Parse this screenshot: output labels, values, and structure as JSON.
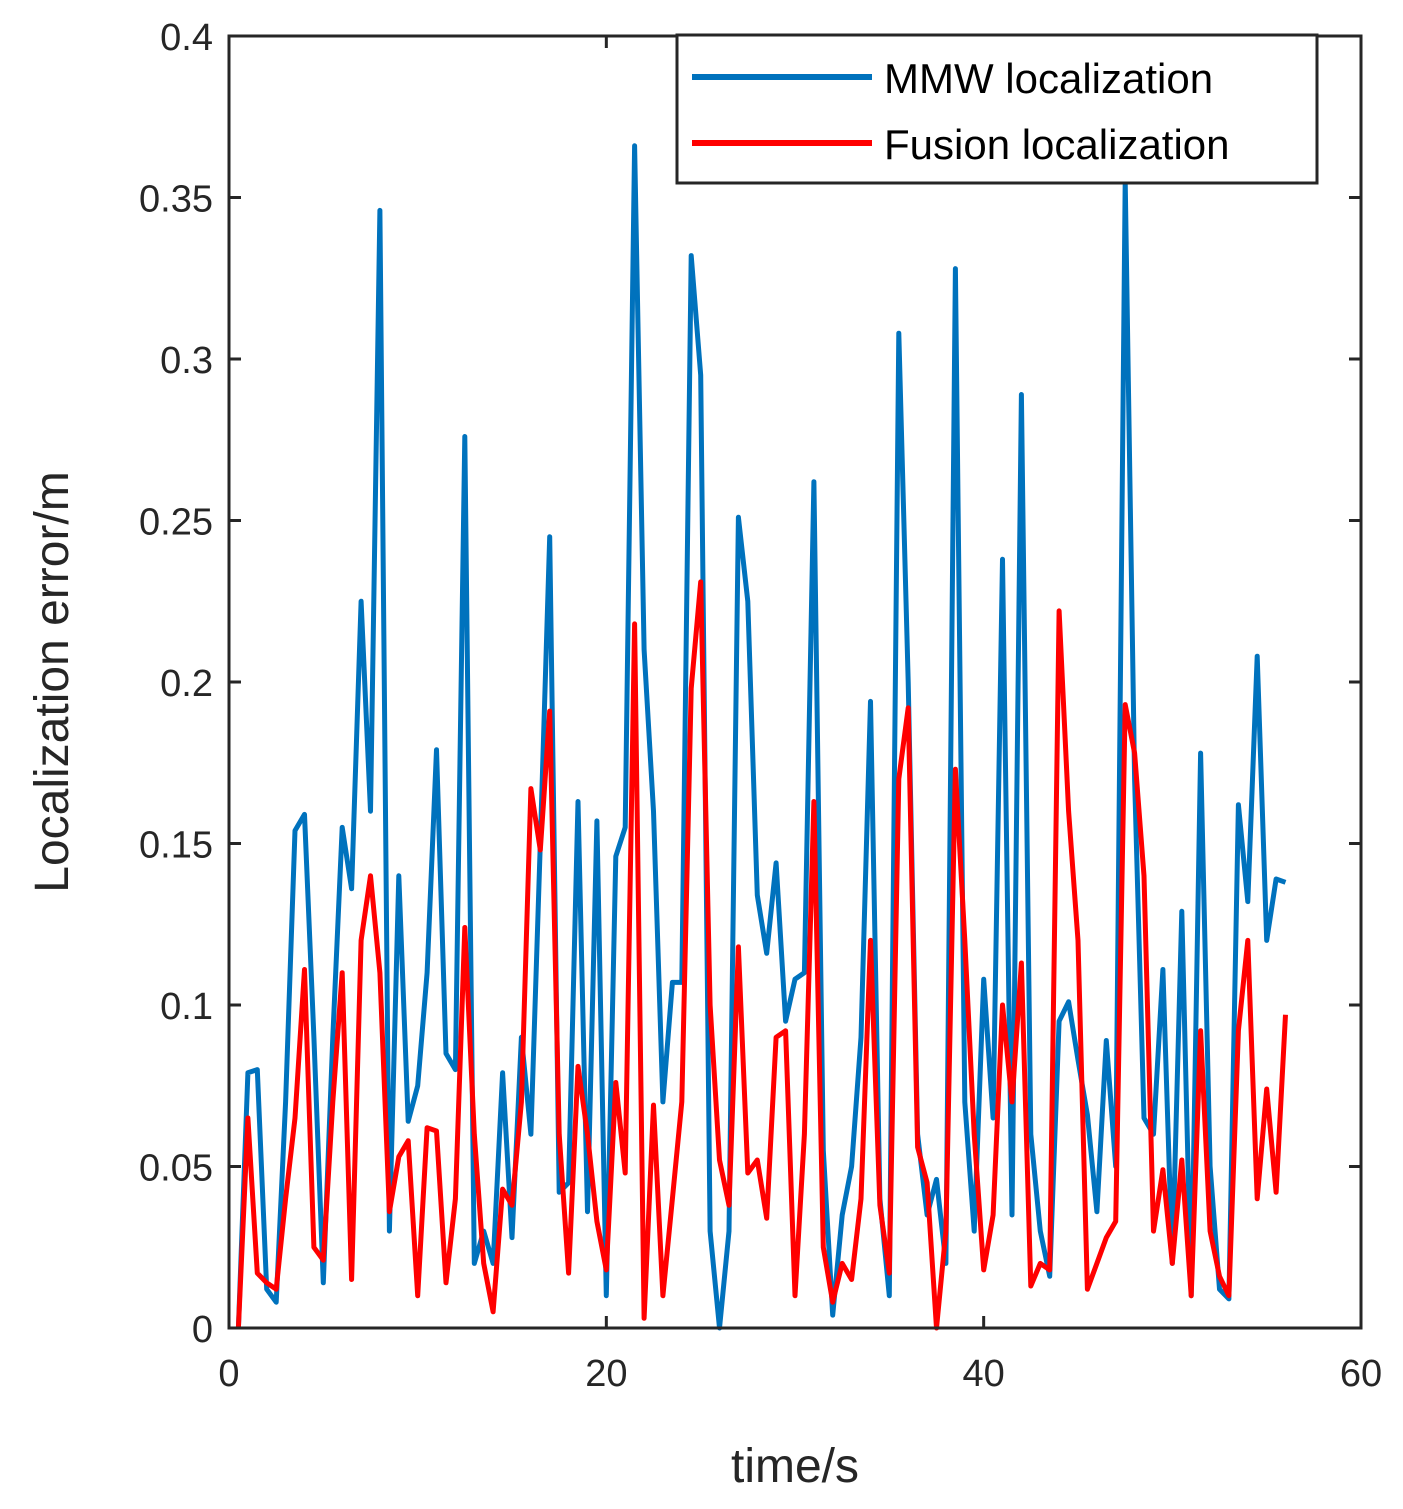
{
  "chart_data": {
    "type": "line",
    "title": "",
    "xlabel": "time/s",
    "ylabel": "Localization error/m",
    "xlim": [
      0,
      60
    ],
    "ylim": [
      0,
      0.4
    ],
    "xticks": [
      0,
      20,
      40,
      60
    ],
    "yticks": [
      0,
      0.05,
      0.1,
      0.15,
      0.2,
      0.25,
      0.3,
      0.35,
      0.4
    ],
    "xtick_labels": [
      "0",
      "20",
      "40",
      "60"
    ],
    "ytick_labels": [
      "0",
      "0.05",
      "0.1",
      "0.15",
      "0.2",
      "0.25",
      "0.3",
      "0.35",
      "0.4"
    ],
    "grid": false,
    "legend_position": "top-right",
    "x": [
      0.5,
      1.0,
      1.5,
      2.0,
      2.5,
      3.0,
      3.5,
      4.0,
      4.5,
      5.0,
      5.5,
      6.0,
      6.5,
      7.0,
      7.5,
      8.0,
      8.5,
      9.0,
      9.5,
      10.0,
      10.5,
      11.0,
      11.5,
      12.0,
      12.5,
      13.0,
      13.5,
      14.0,
      14.5,
      15.0,
      15.5,
      16.0,
      16.5,
      17.0,
      17.5,
      18.0,
      18.5,
      19.0,
      19.5,
      20.0,
      20.5,
      21.0,
      21.5,
      22.0,
      22.5,
      23.0,
      23.5,
      24.0,
      24.5,
      25.0,
      25.5,
      26.0,
      26.5,
      27.0,
      27.5,
      28.0,
      28.5,
      29.0,
      29.5,
      30.0,
      30.5,
      31.0,
      31.5,
      32.0,
      32.5,
      33.0,
      33.5,
      34.0,
      34.5,
      35.0,
      35.5,
      36.0,
      36.5,
      37.0,
      37.5,
      38.0,
      38.5,
      39.0,
      39.5,
      40.0,
      40.5,
      41.0,
      41.5,
      42.0,
      42.5,
      43.0,
      43.5,
      44.0,
      44.5,
      45.0,
      45.5,
      46.0,
      46.5,
      47.0,
      47.5,
      48.0,
      48.5,
      49.0,
      49.5,
      50.0,
      50.5,
      51.0,
      51.5,
      52.0,
      52.5,
      53.0,
      53.5,
      54.0,
      54.5,
      55.0,
      55.5,
      56.0
    ],
    "series": [
      {
        "name": "MMW localization",
        "color": "#0072BD",
        "values": [
          0.0,
          0.079,
          0.08,
          0.012,
          0.008,
          0.07,
          0.154,
          0.159,
          0.09,
          0.014,
          0.09,
          0.155,
          0.136,
          0.225,
          0.16,
          0.346,
          0.03,
          0.14,
          0.064,
          0.075,
          0.11,
          0.179,
          0.085,
          0.08,
          0.276,
          0.02,
          0.03,
          0.02,
          0.079,
          0.028,
          0.09,
          0.06,
          0.15,
          0.245,
          0.042,
          0.045,
          0.163,
          0.036,
          0.157,
          0.01,
          0.146,
          0.155,
          0.366,
          0.21,
          0.16,
          0.07,
          0.107,
          0.107,
          0.332,
          0.295,
          0.03,
          0.0,
          0.03,
          0.251,
          0.225,
          0.134,
          0.116,
          0.144,
          0.095,
          0.108,
          0.11,
          0.262,
          0.055,
          0.004,
          0.035,
          0.05,
          0.09,
          0.194,
          0.04,
          0.01,
          0.308,
          0.2,
          0.06,
          0.035,
          0.046,
          0.02,
          0.328,
          0.07,
          0.03,
          0.108,
          0.065,
          0.238,
          0.035,
          0.289,
          0.06,
          0.03,
          0.016,
          0.095,
          0.101,
          0.083,
          0.066,
          0.036,
          0.089,
          0.05,
          0.355,
          0.17,
          0.065,
          0.06,
          0.111,
          0.02,
          0.129,
          0.01,
          0.178,
          0.05,
          0.012,
          0.009,
          0.162,
          0.132,
          0.208,
          0.12,
          0.139,
          0.138
        ]
      },
      {
        "name": "Fusion localization",
        "color": "#FF0000",
        "values": [
          0.0,
          0.065,
          0.017,
          0.014,
          0.012,
          0.04,
          0.065,
          0.111,
          0.025,
          0.021,
          0.07,
          0.11,
          0.015,
          0.12,
          0.14,
          0.11,
          0.036,
          0.053,
          0.058,
          0.01,
          0.062,
          0.061,
          0.014,
          0.04,
          0.124,
          0.06,
          0.02,
          0.005,
          0.043,
          0.038,
          0.07,
          0.167,
          0.148,
          0.191,
          0.06,
          0.017,
          0.081,
          0.06,
          0.033,
          0.018,
          0.076,
          0.048,
          0.218,
          0.003,
          0.069,
          0.01,
          0.04,
          0.07,
          0.198,
          0.231,
          0.1,
          0.052,
          0.038,
          0.118,
          0.048,
          0.052,
          0.034,
          0.09,
          0.092,
          0.01,
          0.06,
          0.163,
          0.025,
          0.008,
          0.02,
          0.015,
          0.04,
          0.12,
          0.038,
          0.017,
          0.17,
          0.192,
          0.056,
          0.045,
          0.0,
          0.03,
          0.173,
          0.12,
          0.06,
          0.018,
          0.035,
          0.1,
          0.07,
          0.113,
          0.013,
          0.02,
          0.018,
          0.222,
          0.16,
          0.12,
          0.012,
          0.02,
          0.028,
          0.033,
          0.193,
          0.178,
          0.14,
          0.03,
          0.049,
          0.02,
          0.052,
          0.01,
          0.092,
          0.03,
          0.016,
          0.01,
          0.092,
          0.12,
          0.04,
          0.074,
          0.042,
          0.097
        ]
      }
    ]
  }
}
